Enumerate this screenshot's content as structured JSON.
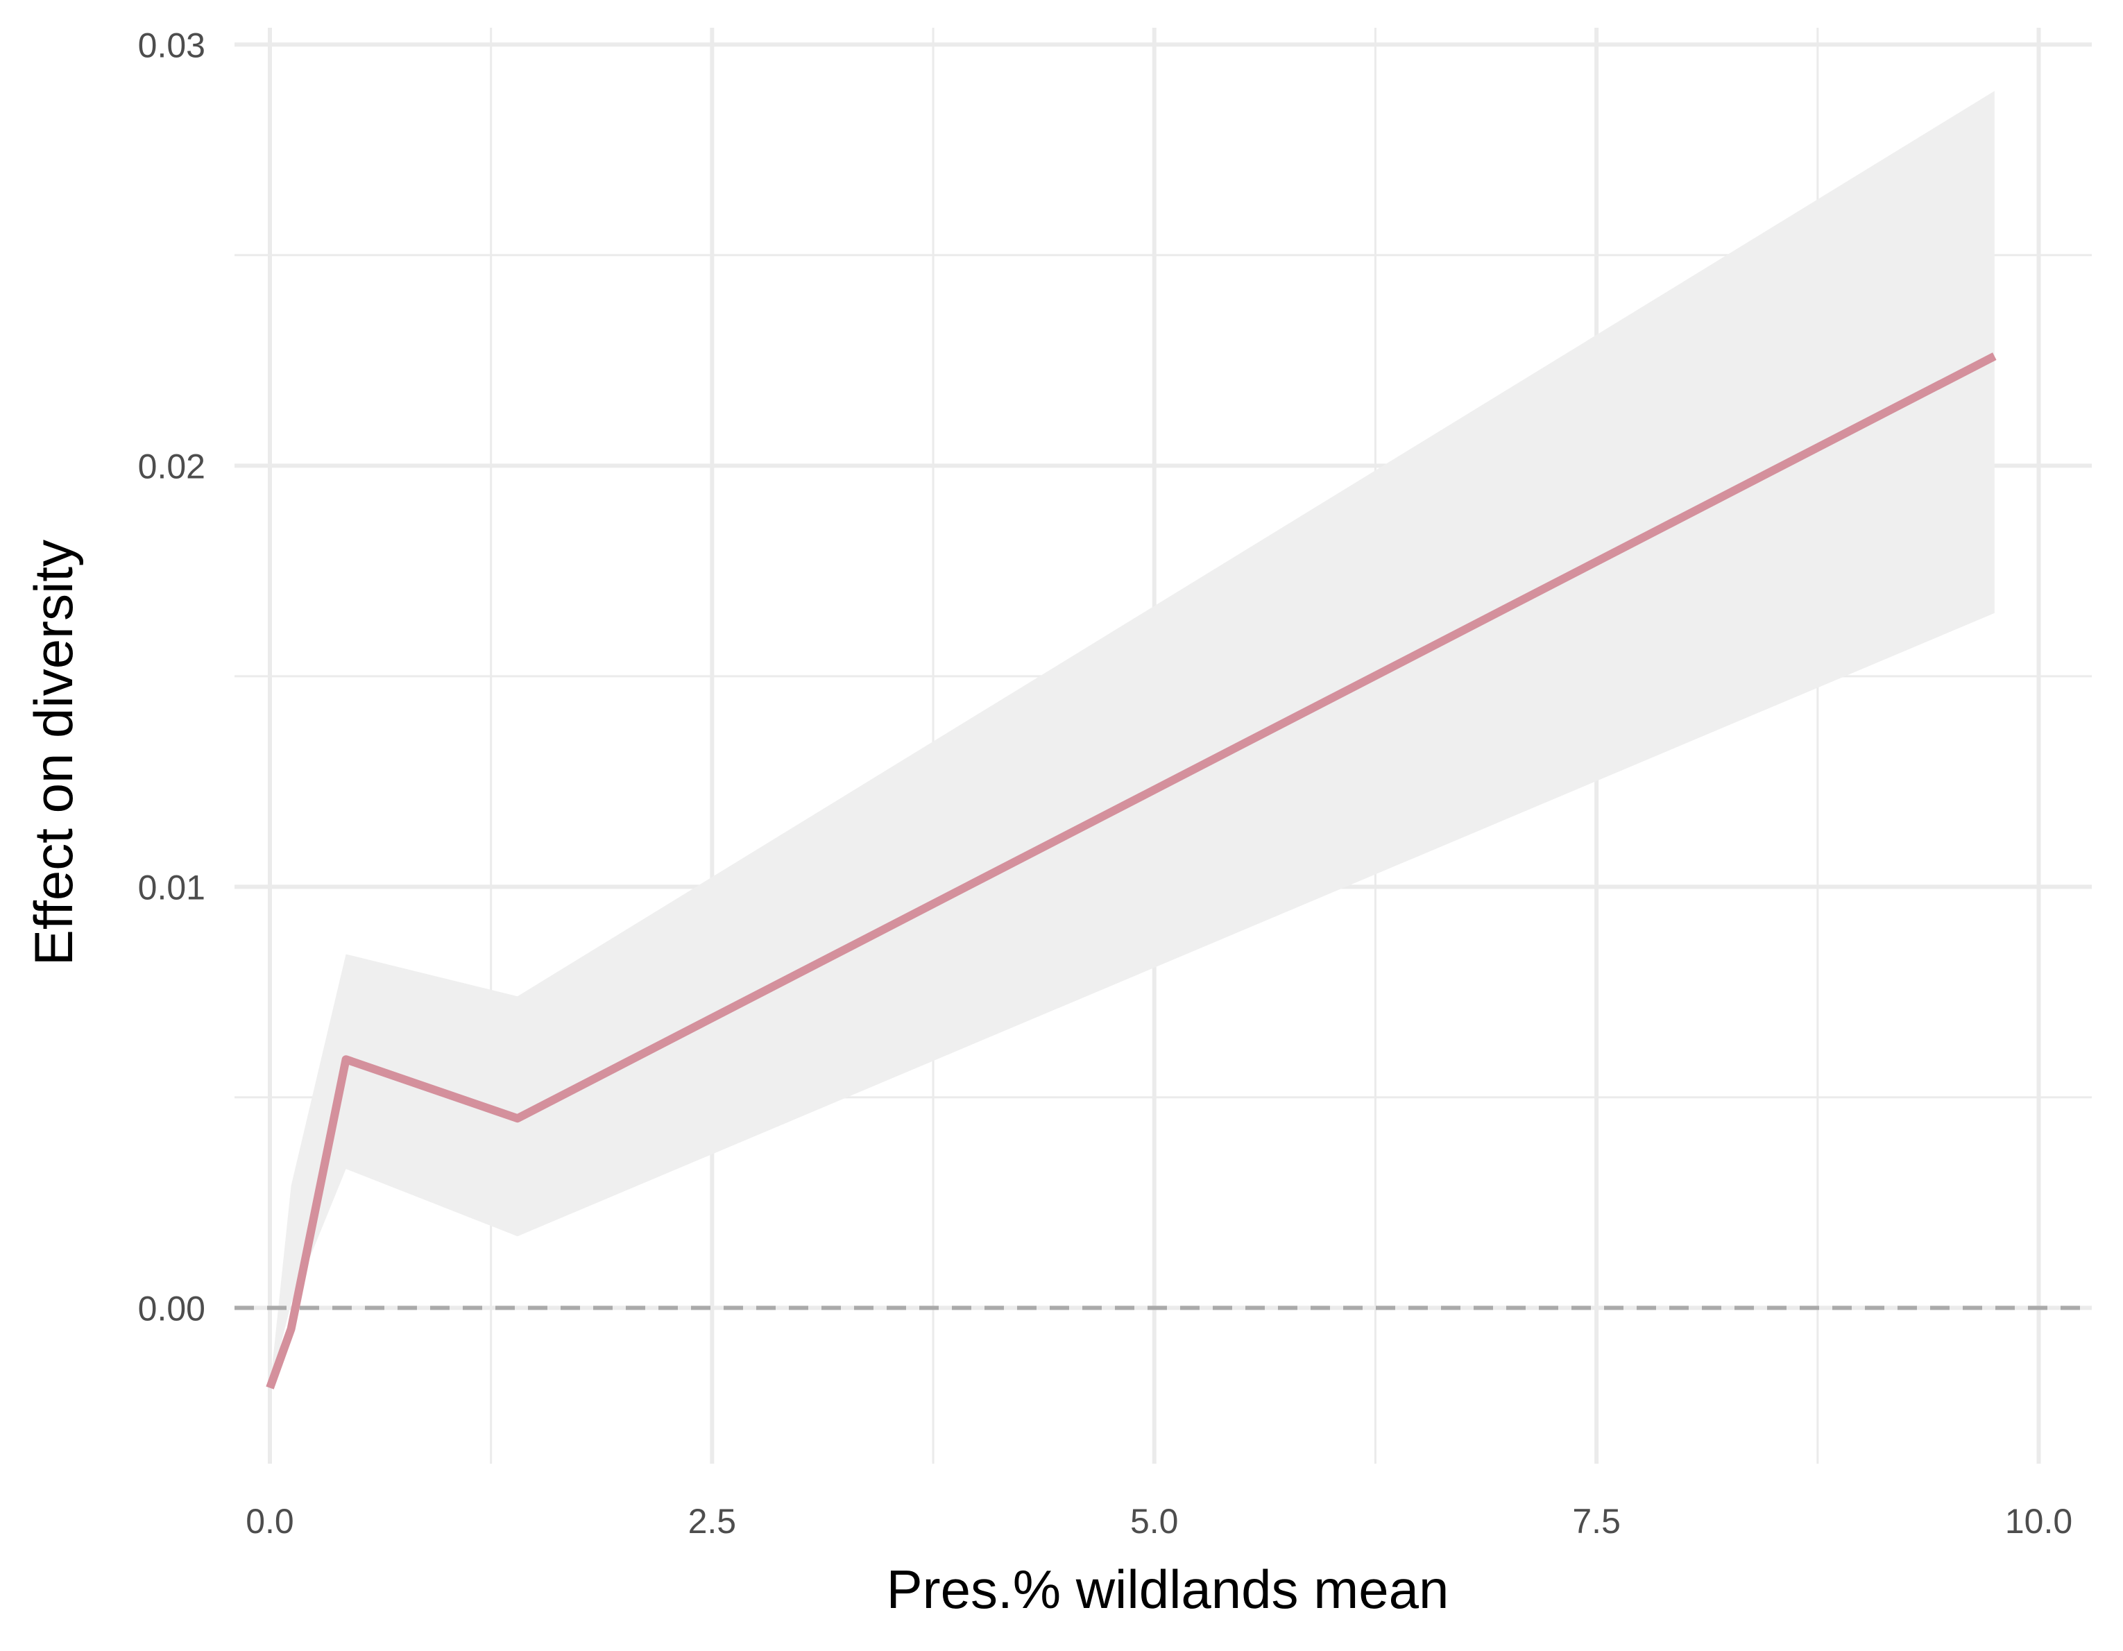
{
  "chart_data": {
    "type": "line",
    "title": "",
    "xlabel": "Pres.% wildlands mean",
    "ylabel": "Effect on diversity",
    "xlim": [
      -0.2,
      10.3
    ],
    "ylim": [
      -0.0037,
      0.0304
    ],
    "x_ticks": [
      0.0,
      2.5,
      5.0,
      7.5,
      10.0
    ],
    "x_tick_labels": [
      "0.0",
      "2.5",
      "5.0",
      "7.5",
      "10.0"
    ],
    "x_minor_ticks": [
      1.25,
      3.75,
      6.25,
      8.75
    ],
    "y_ticks": [
      0.0,
      0.01,
      0.02,
      0.03
    ],
    "y_tick_labels": [
      "0.00",
      "0.01",
      "0.02",
      "0.03"
    ],
    "y_minor_ticks": [
      0.005,
      0.015,
      0.025
    ],
    "grid": true,
    "reference_line": {
      "y": 0.0,
      "style": "dashed",
      "color": "#aaaaaa"
    },
    "colors": {
      "line": "#d4909c",
      "ribbon": "#efefef",
      "grid": "#ebebeb"
    },
    "series": [
      {
        "x": [
          0.0,
          0.12,
          0.43,
          1.4,
          9.75
        ],
        "y": [
          -0.0019,
          -0.0005,
          0.0059,
          0.0045,
          0.0226
        ],
        "lower": [
          -0.0019,
          0.0001,
          0.0033,
          0.0017,
          0.0165
        ],
        "upper": [
          -0.0019,
          0.0029,
          0.0084,
          0.0074,
          0.0289
        ]
      }
    ]
  }
}
